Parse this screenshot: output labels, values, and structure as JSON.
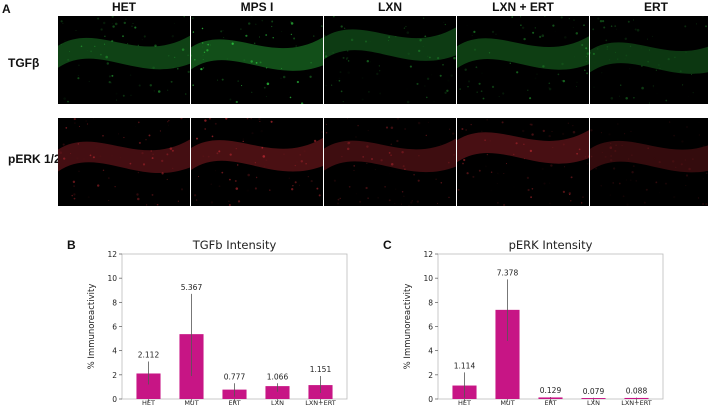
{
  "figure": {
    "panel_a_letter": "A",
    "columns": [
      "HET",
      "MPS I",
      "LXN",
      "LXN + ERT",
      "ERT"
    ],
    "rows": [
      {
        "label": "TGFβ",
        "color": "#2ecc40"
      },
      {
        "label": "pERK 1/2",
        "color": "#e0303a"
      }
    ]
  },
  "chart_data": [
    {
      "type": "bar",
      "panel_letter": "B",
      "title": "TGFb Intensity",
      "xlabel": "",
      "ylabel": "% Immunoreactivity",
      "ylim": [
        0,
        12
      ],
      "yticks": [
        0,
        2,
        4,
        6,
        8,
        10,
        12
      ],
      "categories": [
        "HET",
        "MUT",
        "ERT",
        "LXN",
        "LXN+ERT"
      ],
      "values": [
        2.112,
        5.367,
        0.777,
        1.066,
        1.151
      ],
      "value_labels": [
        "2.112",
        "5.367",
        "0.777",
        "1.066",
        "1.151"
      ],
      "error_low": [
        1.2,
        1.9,
        0.2,
        0.6,
        0.5
      ],
      "error_high": [
        3.1,
        8.7,
        1.3,
        1.3,
        1.9
      ],
      "bar_color": "#c71585",
      "grid": false
    },
    {
      "type": "bar",
      "panel_letter": "C",
      "title": "pERK Intensity",
      "xlabel": "",
      "ylabel": "% Immunoreactivity",
      "ylim": [
        0,
        12
      ],
      "yticks": [
        0,
        2,
        4,
        6,
        8,
        10,
        12
      ],
      "categories": [
        "HET",
        "MUT",
        "ERT",
        "LXN",
        "LXN+ERT"
      ],
      "values": [
        1.114,
        7.378,
        0.129,
        0.079,
        0.088
      ],
      "value_labels": [
        "1.114",
        "7.378",
        "0.129",
        "0.079",
        "0.088"
      ],
      "error_low": [
        0.1,
        4.8,
        0.1,
        0.06,
        0.07
      ],
      "error_high": [
        2.2,
        9.9,
        0.17,
        0.1,
        0.11
      ],
      "bar_color": "#c71585",
      "grid": false
    }
  ]
}
